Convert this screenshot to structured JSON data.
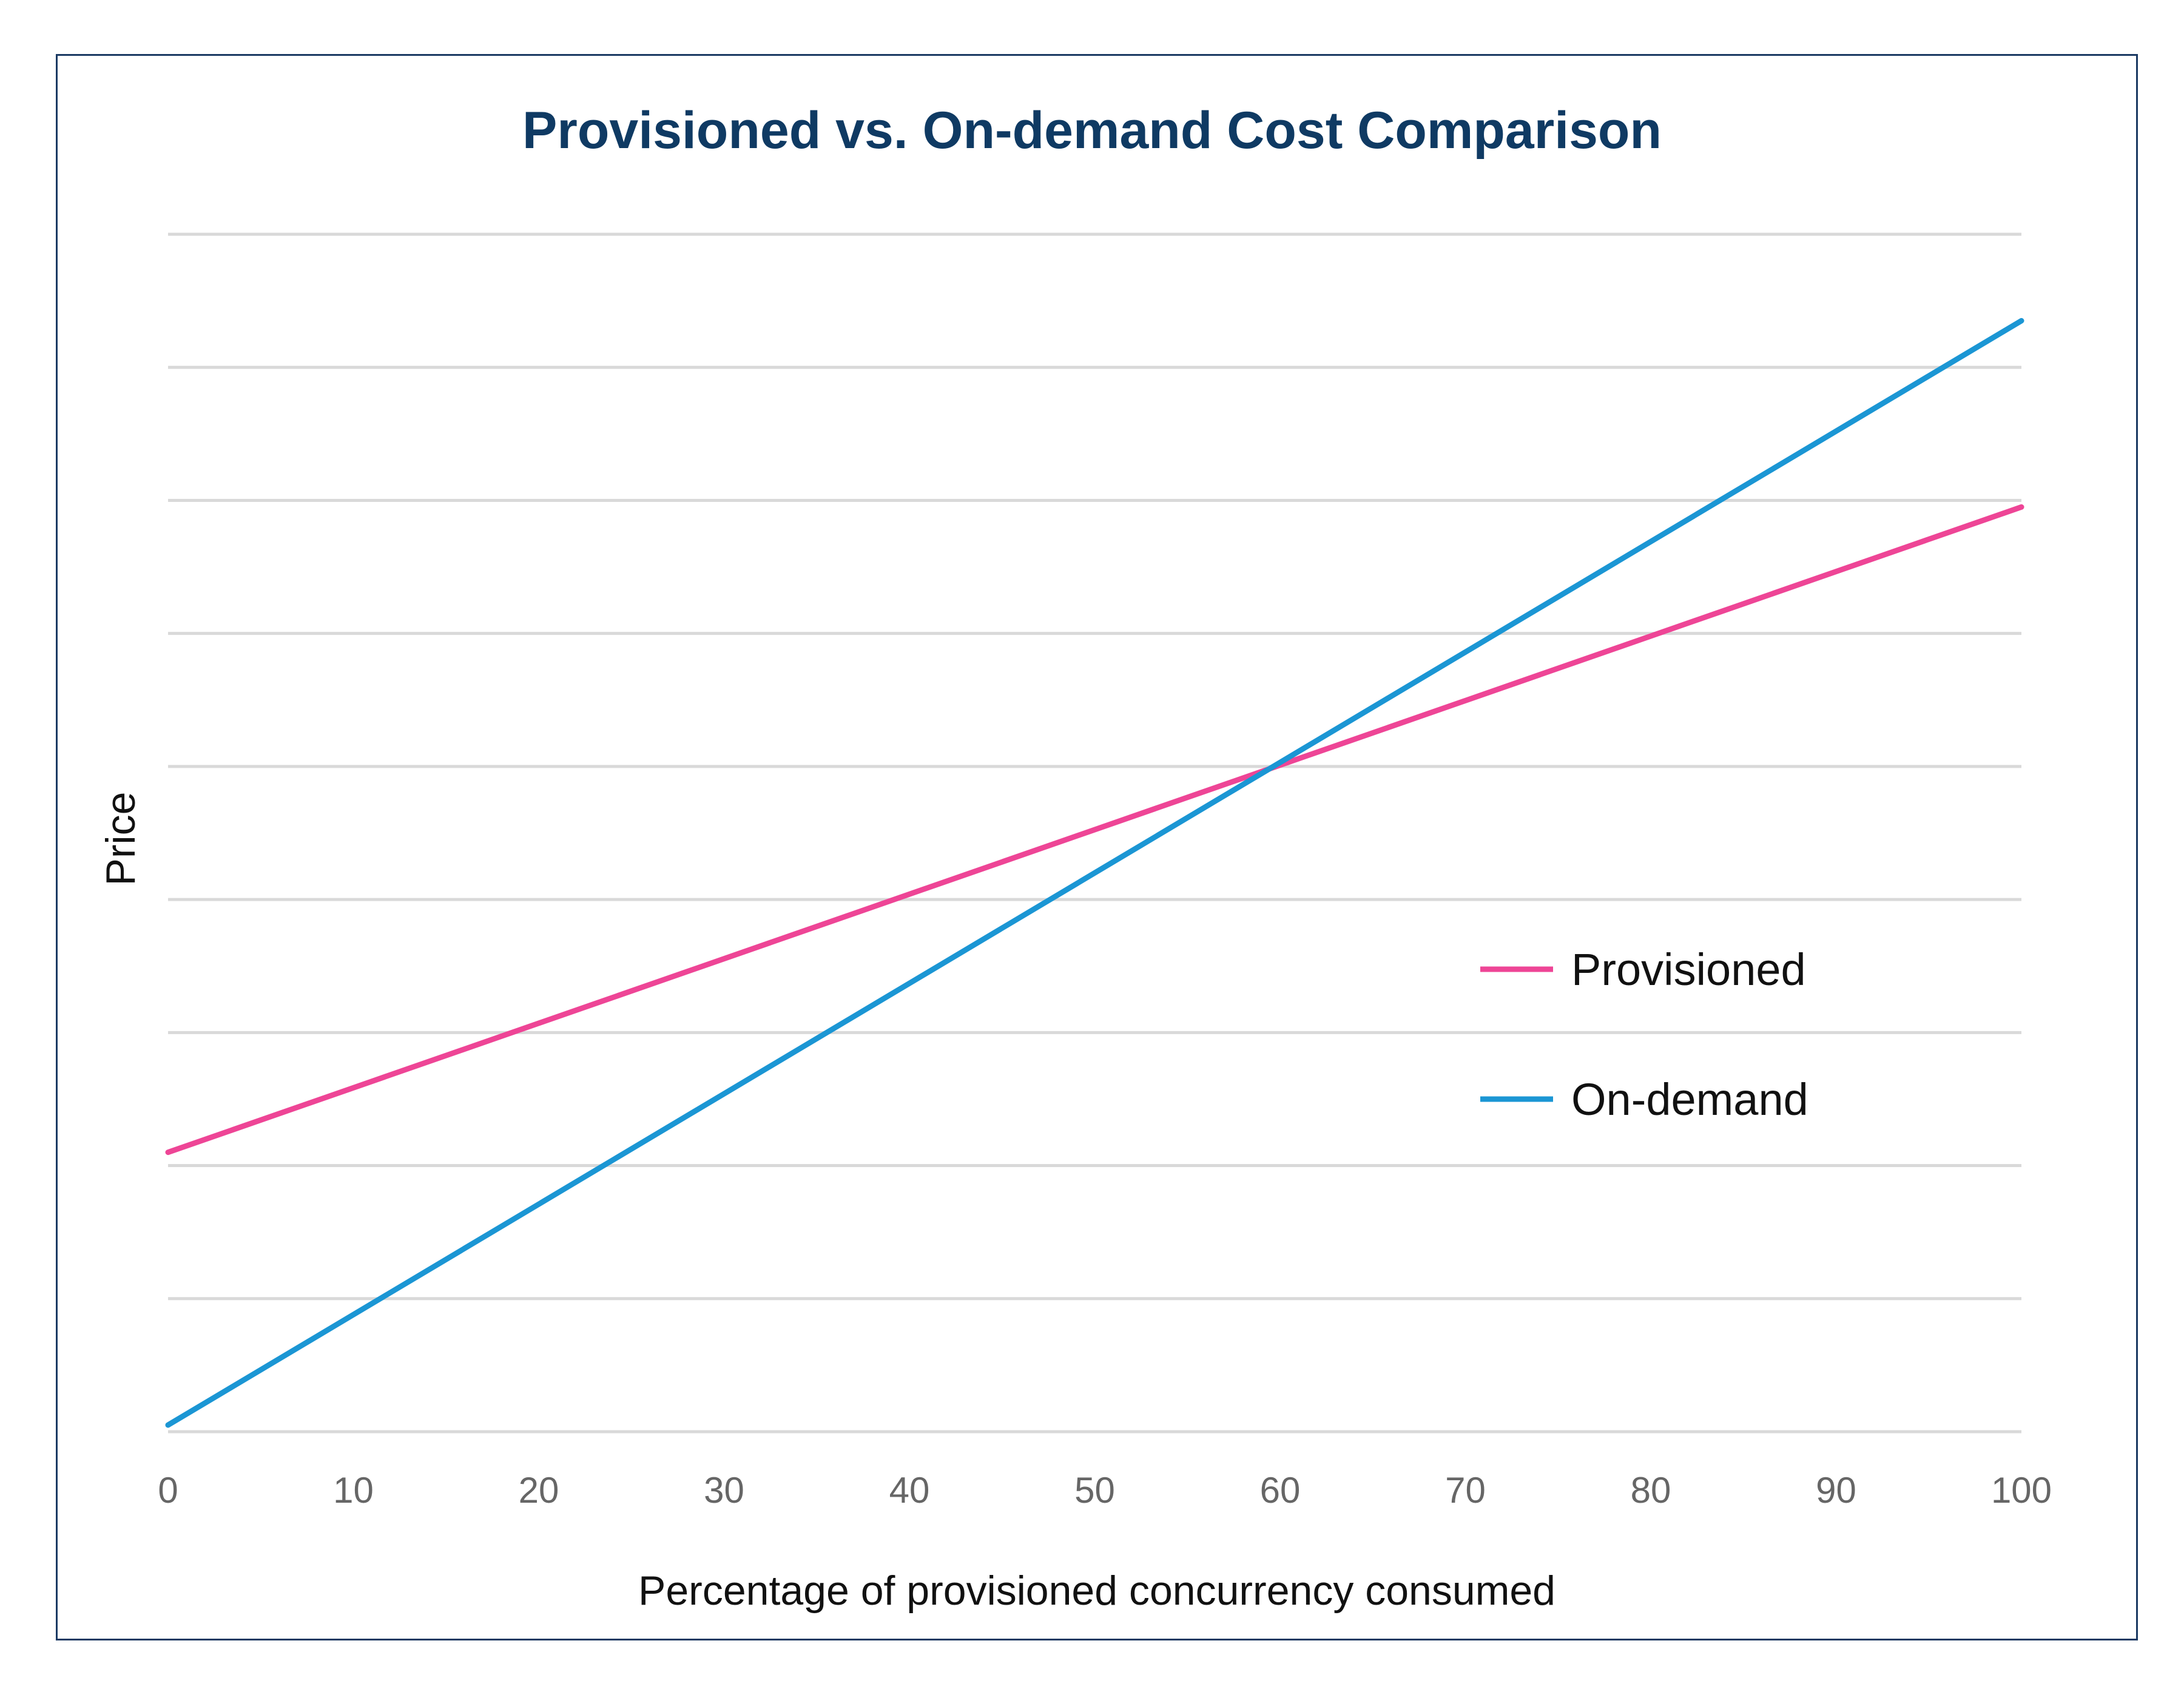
{
  "colors": {
    "title": "#0f3a63",
    "grid": "#d9d9d9",
    "frame": "#1b3a63",
    "provisioned": "#ee4596",
    "on_demand": "#1b96d4"
  },
  "chart_data": {
    "type": "line",
    "title": "Provisioned vs. On-demand Cost Comparison",
    "xlabel": "Percentage of provisioned concurrency consumed",
    "ylabel": "Price",
    "x_ticks": [
      "0",
      "10",
      "20",
      "30",
      "40",
      "50",
      "60",
      "70",
      "80",
      "90",
      "100"
    ],
    "xlim": [
      0,
      100
    ],
    "ylim": [
      0,
      9
    ],
    "y_ticks_labeled": false,
    "grid": true,
    "legend_position": "right-middle",
    "series": [
      {
        "name": "Provisioned",
        "color_key": "provisioned",
        "x": [
          0,
          100
        ],
        "y": [
          2.1,
          6.95
        ]
      },
      {
        "name": "On-demand",
        "color_key": "on_demand",
        "x": [
          0,
          100
        ],
        "y": [
          0.05,
          8.35
        ]
      }
    ]
  }
}
